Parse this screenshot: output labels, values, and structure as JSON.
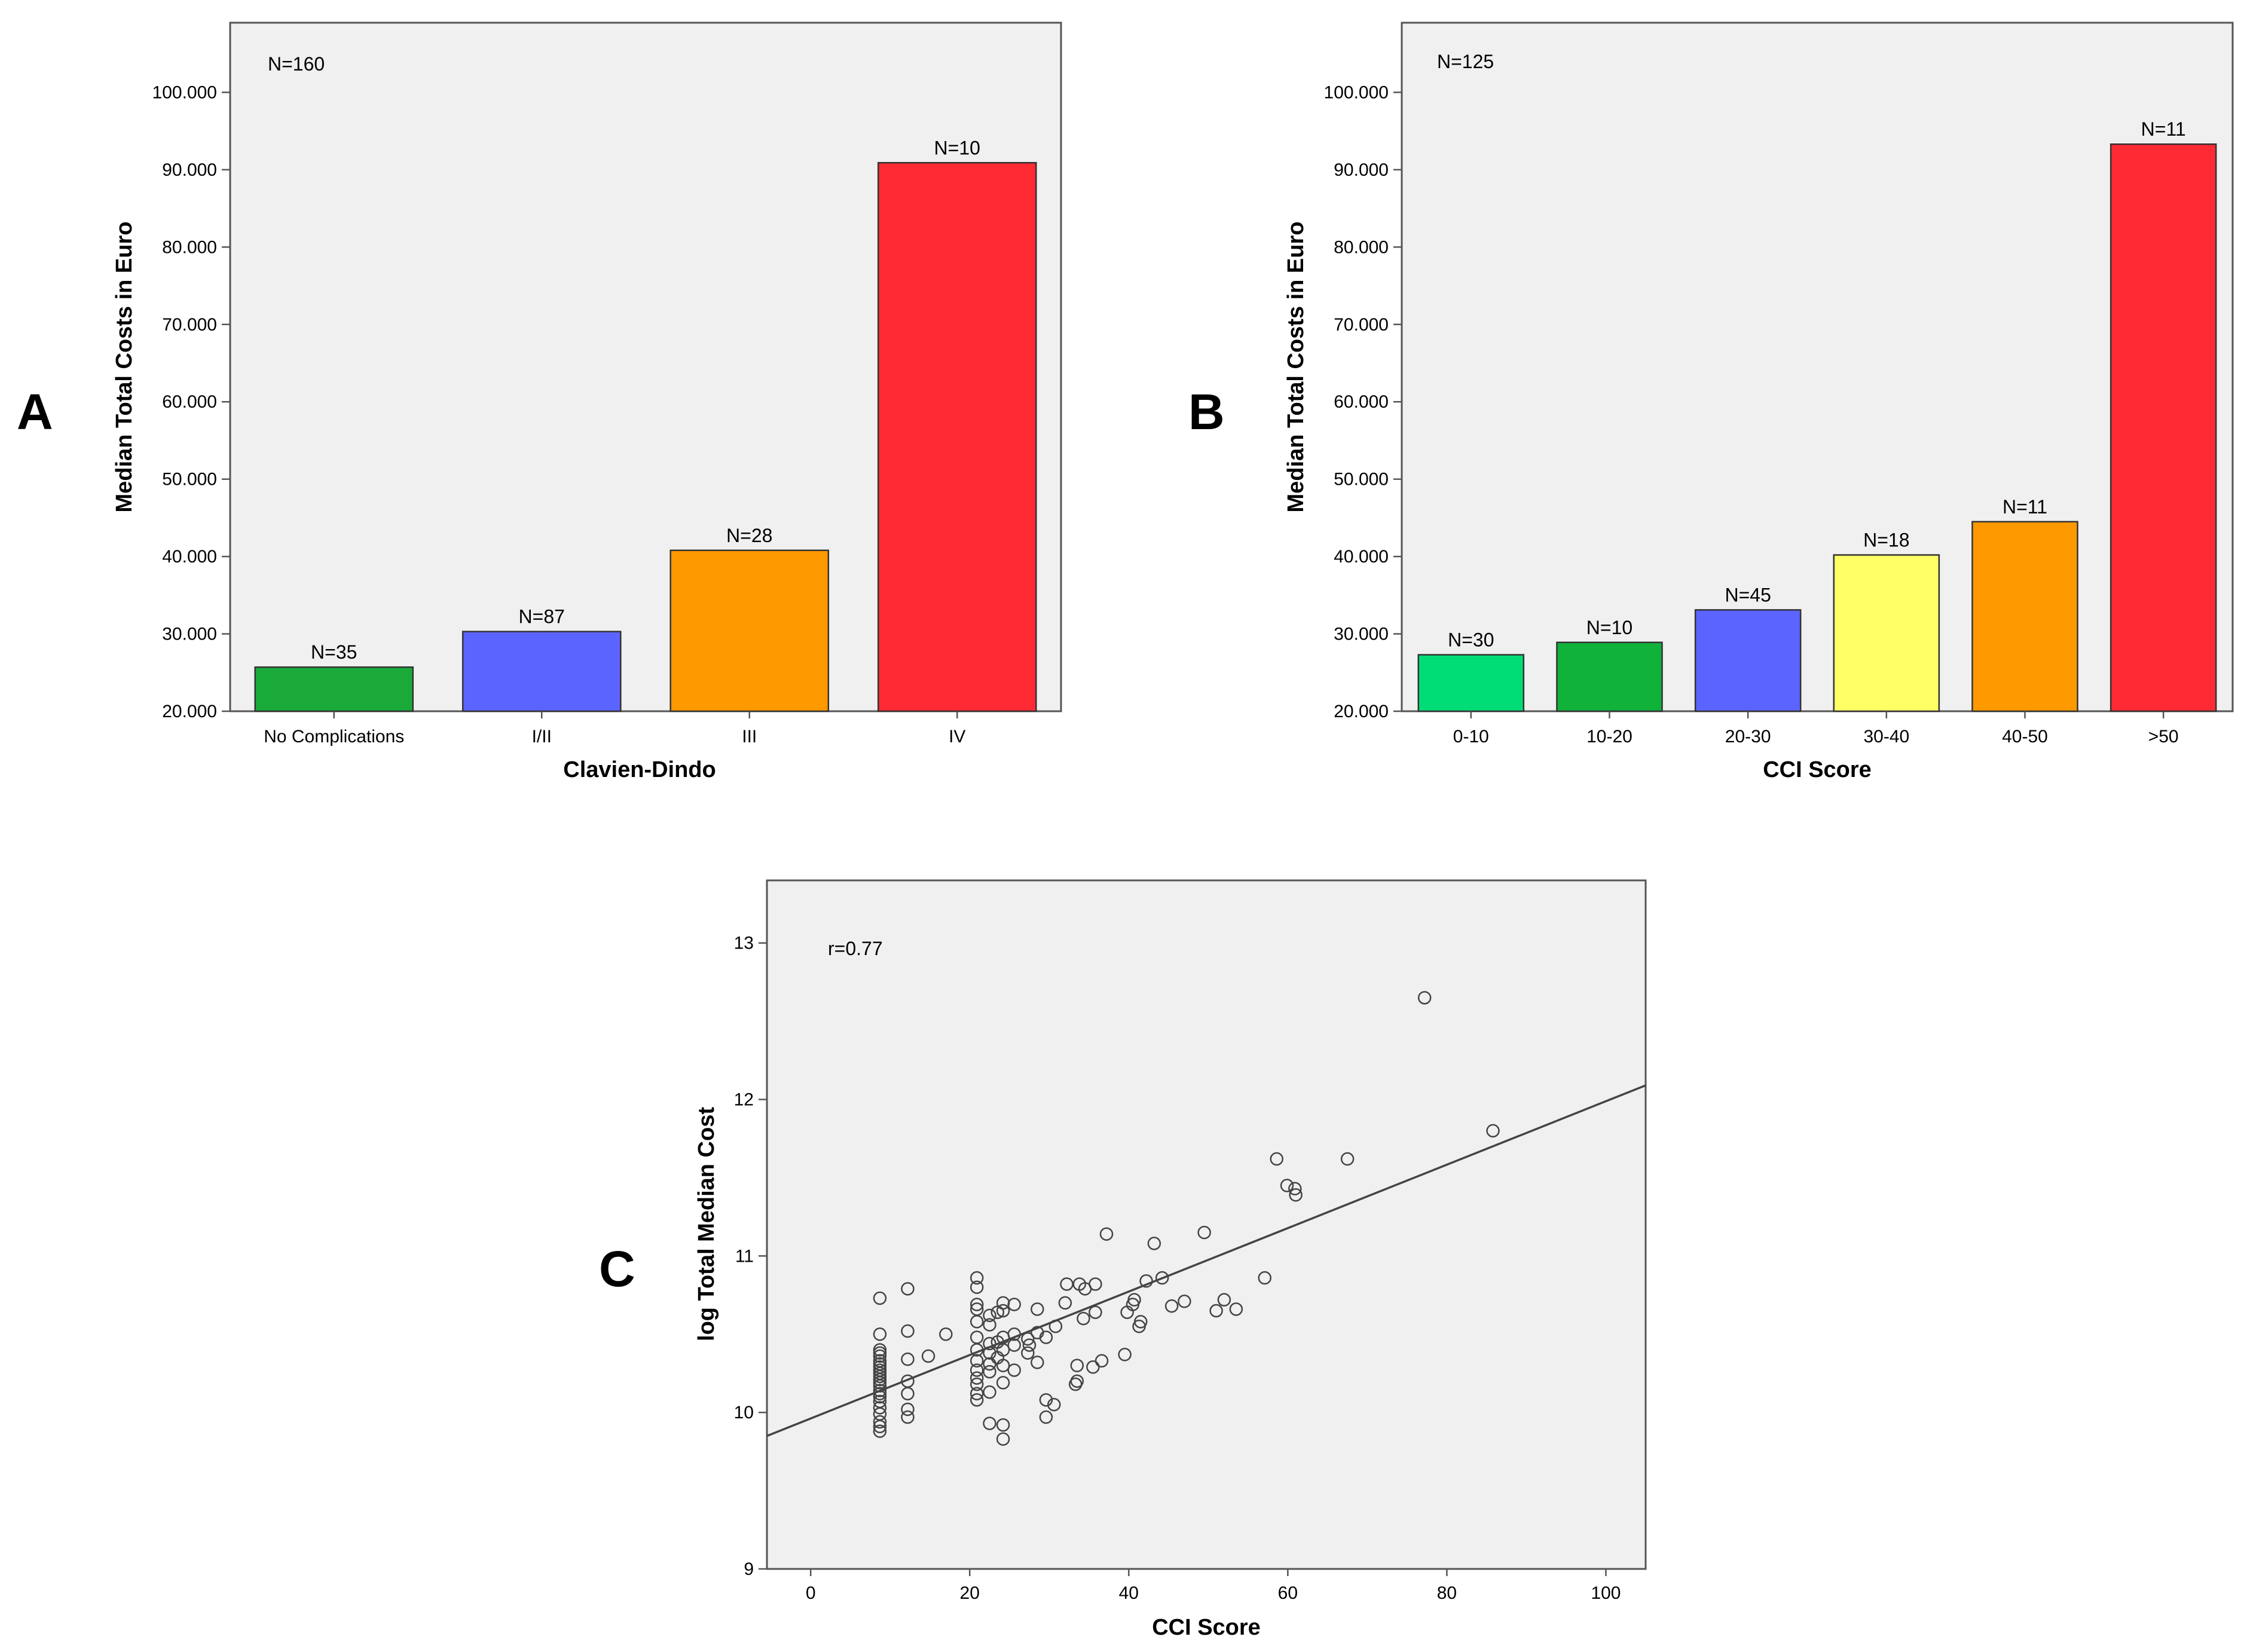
{
  "panels": {
    "a": {
      "letter": "A"
    },
    "b": {
      "letter": "B"
    },
    "c": {
      "letter": "C"
    }
  },
  "chart_data": [
    {
      "id": "panelA",
      "type": "bar",
      "total_label": "N=160",
      "xlabel": "Clavien-Dindo",
      "ylabel": "Median Total Costs in Euro",
      "categories": [
        "No Complications",
        "I/II",
        "III",
        "IV"
      ],
      "values": [
        25700,
        30300,
        40800,
        90900
      ],
      "n_labels": [
        "N=35",
        "N=87",
        "N=28",
        "N=10"
      ],
      "colors": [
        "#1aaa3a",
        "#5c64ff",
        "#ff9900",
        "#ff2a33"
      ],
      "ylim": [
        20000,
        109000
      ],
      "yticks": [
        20000,
        30000,
        40000,
        50000,
        60000,
        70000,
        80000,
        90000,
        100000
      ],
      "ytick_labels": [
        "20.000",
        "30.000",
        "40.000",
        "50.000",
        "60.000",
        "70.000",
        "80.000",
        "90.000",
        "100.000"
      ]
    },
    {
      "id": "panelB",
      "type": "bar",
      "total_label": "N=125",
      "xlabel": "CCI Score",
      "ylabel": "Median Total Costs in Euro",
      "categories": [
        "0-10",
        "10-20",
        "20-30",
        "30-40",
        "40-50",
        ">50"
      ],
      "values": [
        27300,
        28900,
        33100,
        40200,
        44500,
        93300
      ],
      "n_labels": [
        "N=30",
        "N=10",
        "N=45",
        "N=18",
        "N=11",
        "N=11"
      ],
      "colors": [
        "#00dd77",
        "#10b23a",
        "#5c64ff",
        "#ffff66",
        "#ff9900",
        "#ff2a33"
      ],
      "ylim": [
        20000,
        109000
      ],
      "yticks": [
        20000,
        30000,
        40000,
        50000,
        60000,
        70000,
        80000,
        90000,
        100000
      ],
      "ytick_labels": [
        "20.000",
        "30.000",
        "40.000",
        "50.000",
        "60.000",
        "70.000",
        "80.000",
        "90.000",
        "100.000"
      ]
    },
    {
      "id": "panelC",
      "type": "scatter",
      "annotation": "r=0.77",
      "xlabel": "CCI Score",
      "ylabel": "log Total Median Cost",
      "xlim": [
        -5.5,
        105
      ],
      "ylim": [
        9,
        13.4
      ],
      "xticks": [
        0,
        20,
        40,
        60,
        80,
        100
      ],
      "xtick_labels": [
        "0",
        "20",
        "40",
        "60",
        "80",
        "100"
      ],
      "yticks": [
        9,
        10,
        11,
        12,
        13
      ],
      "ytick_labels": [
        "9",
        "10",
        "11",
        "12",
        "13"
      ],
      "fit_line": {
        "x": [
          -5.5,
          105
        ],
        "y": [
          9.85,
          12.09
        ]
      },
      "points": [
        [
          8.7,
          9.88
        ],
        [
          8.7,
          9.91
        ],
        [
          8.7,
          9.94
        ],
        [
          8.7,
          9.99
        ],
        [
          8.7,
          10.03
        ],
        [
          8.7,
          10.07
        ],
        [
          8.7,
          10.1
        ],
        [
          8.7,
          10.12
        ],
        [
          8.7,
          10.14
        ],
        [
          8.7,
          10.17
        ],
        [
          8.7,
          10.19
        ],
        [
          8.7,
          10.21
        ],
        [
          8.7,
          10.23
        ],
        [
          8.7,
          10.25
        ],
        [
          8.7,
          10.27
        ],
        [
          8.7,
          10.29
        ],
        [
          8.7,
          10.31
        ],
        [
          8.7,
          10.33
        ],
        [
          8.7,
          10.36
        ],
        [
          8.7,
          10.38
        ],
        [
          8.7,
          10.4
        ],
        [
          8.7,
          10.5
        ],
        [
          8.7,
          10.73
        ],
        [
          12.2,
          9.97
        ],
        [
          12.2,
          10.02
        ],
        [
          12.2,
          10.12
        ],
        [
          12.2,
          10.2
        ],
        [
          12.2,
          10.34
        ],
        [
          12.2,
          10.52
        ],
        [
          12.2,
          10.79
        ],
        [
          14.8,
          10.36
        ],
        [
          17.0,
          10.5
        ],
        [
          20.9,
          10.08
        ],
        [
          20.9,
          10.12
        ],
        [
          20.9,
          10.18
        ],
        [
          20.9,
          10.22
        ],
        [
          20.9,
          10.27
        ],
        [
          20.9,
          10.33
        ],
        [
          20.9,
          10.4
        ],
        [
          20.9,
          10.48
        ],
        [
          20.9,
          10.58
        ],
        [
          20.9,
          10.66
        ],
        [
          20.9,
          10.69
        ],
        [
          20.9,
          10.8
        ],
        [
          20.9,
          10.86
        ],
        [
          22.5,
          9.93
        ],
        [
          22.5,
          10.13
        ],
        [
          22.5,
          10.26
        ],
        [
          22.5,
          10.31
        ],
        [
          22.5,
          10.38
        ],
        [
          22.5,
          10.44
        ],
        [
          22.5,
          10.56
        ],
        [
          22.5,
          10.62
        ],
        [
          23.5,
          10.35
        ],
        [
          23.5,
          10.45
        ],
        [
          23.5,
          10.64
        ],
        [
          24.2,
          9.83
        ],
        [
          24.2,
          9.92
        ],
        [
          24.2,
          10.19
        ],
        [
          24.2,
          10.3
        ],
        [
          24.2,
          10.4
        ],
        [
          24.2,
          10.48
        ],
        [
          24.2,
          10.65
        ],
        [
          24.2,
          10.7
        ],
        [
          25.6,
          10.27
        ],
        [
          25.6,
          10.43
        ],
        [
          25.6,
          10.5
        ],
        [
          25.6,
          10.69
        ],
        [
          27.3,
          10.38
        ],
        [
          27.3,
          10.47
        ],
        [
          27.5,
          10.43
        ],
        [
          28.5,
          10.32
        ],
        [
          28.5,
          10.51
        ],
        [
          28.5,
          10.66
        ],
        [
          29.6,
          9.97
        ],
        [
          29.6,
          10.08
        ],
        [
          29.6,
          10.48
        ],
        [
          30.6,
          10.05
        ],
        [
          30.8,
          10.55
        ],
        [
          32.0,
          10.7
        ],
        [
          32.2,
          10.82
        ],
        [
          33.3,
          10.18
        ],
        [
          33.5,
          10.3
        ],
        [
          33.5,
          10.2
        ],
        [
          33.8,
          10.82
        ],
        [
          34.3,
          10.6
        ],
        [
          34.5,
          10.79
        ],
        [
          35.5,
          10.29
        ],
        [
          35.8,
          10.64
        ],
        [
          35.8,
          10.82
        ],
        [
          36.6,
          10.33
        ],
        [
          37.2,
          11.14
        ],
        [
          39.5,
          10.37
        ],
        [
          39.8,
          10.64
        ],
        [
          40.5,
          10.69
        ],
        [
          40.7,
          10.72
        ],
        [
          41.3,
          10.55
        ],
        [
          41.5,
          10.58
        ],
        [
          42.2,
          10.84
        ],
        [
          43.2,
          11.08
        ],
        [
          44.2,
          10.86
        ],
        [
          45.4,
          10.68
        ],
        [
          47.0,
          10.71
        ],
        [
          49.5,
          11.15
        ],
        [
          51.0,
          10.65
        ],
        [
          52.0,
          10.72
        ],
        [
          53.5,
          10.66
        ],
        [
          57.1,
          10.86
        ],
        [
          58.6,
          11.62
        ],
        [
          59.9,
          11.45
        ],
        [
          60.9,
          11.43
        ],
        [
          61.0,
          11.39
        ],
        [
          67.5,
          11.62
        ],
        [
          77.2,
          12.65
        ],
        [
          85.8,
          11.8
        ]
      ]
    }
  ]
}
